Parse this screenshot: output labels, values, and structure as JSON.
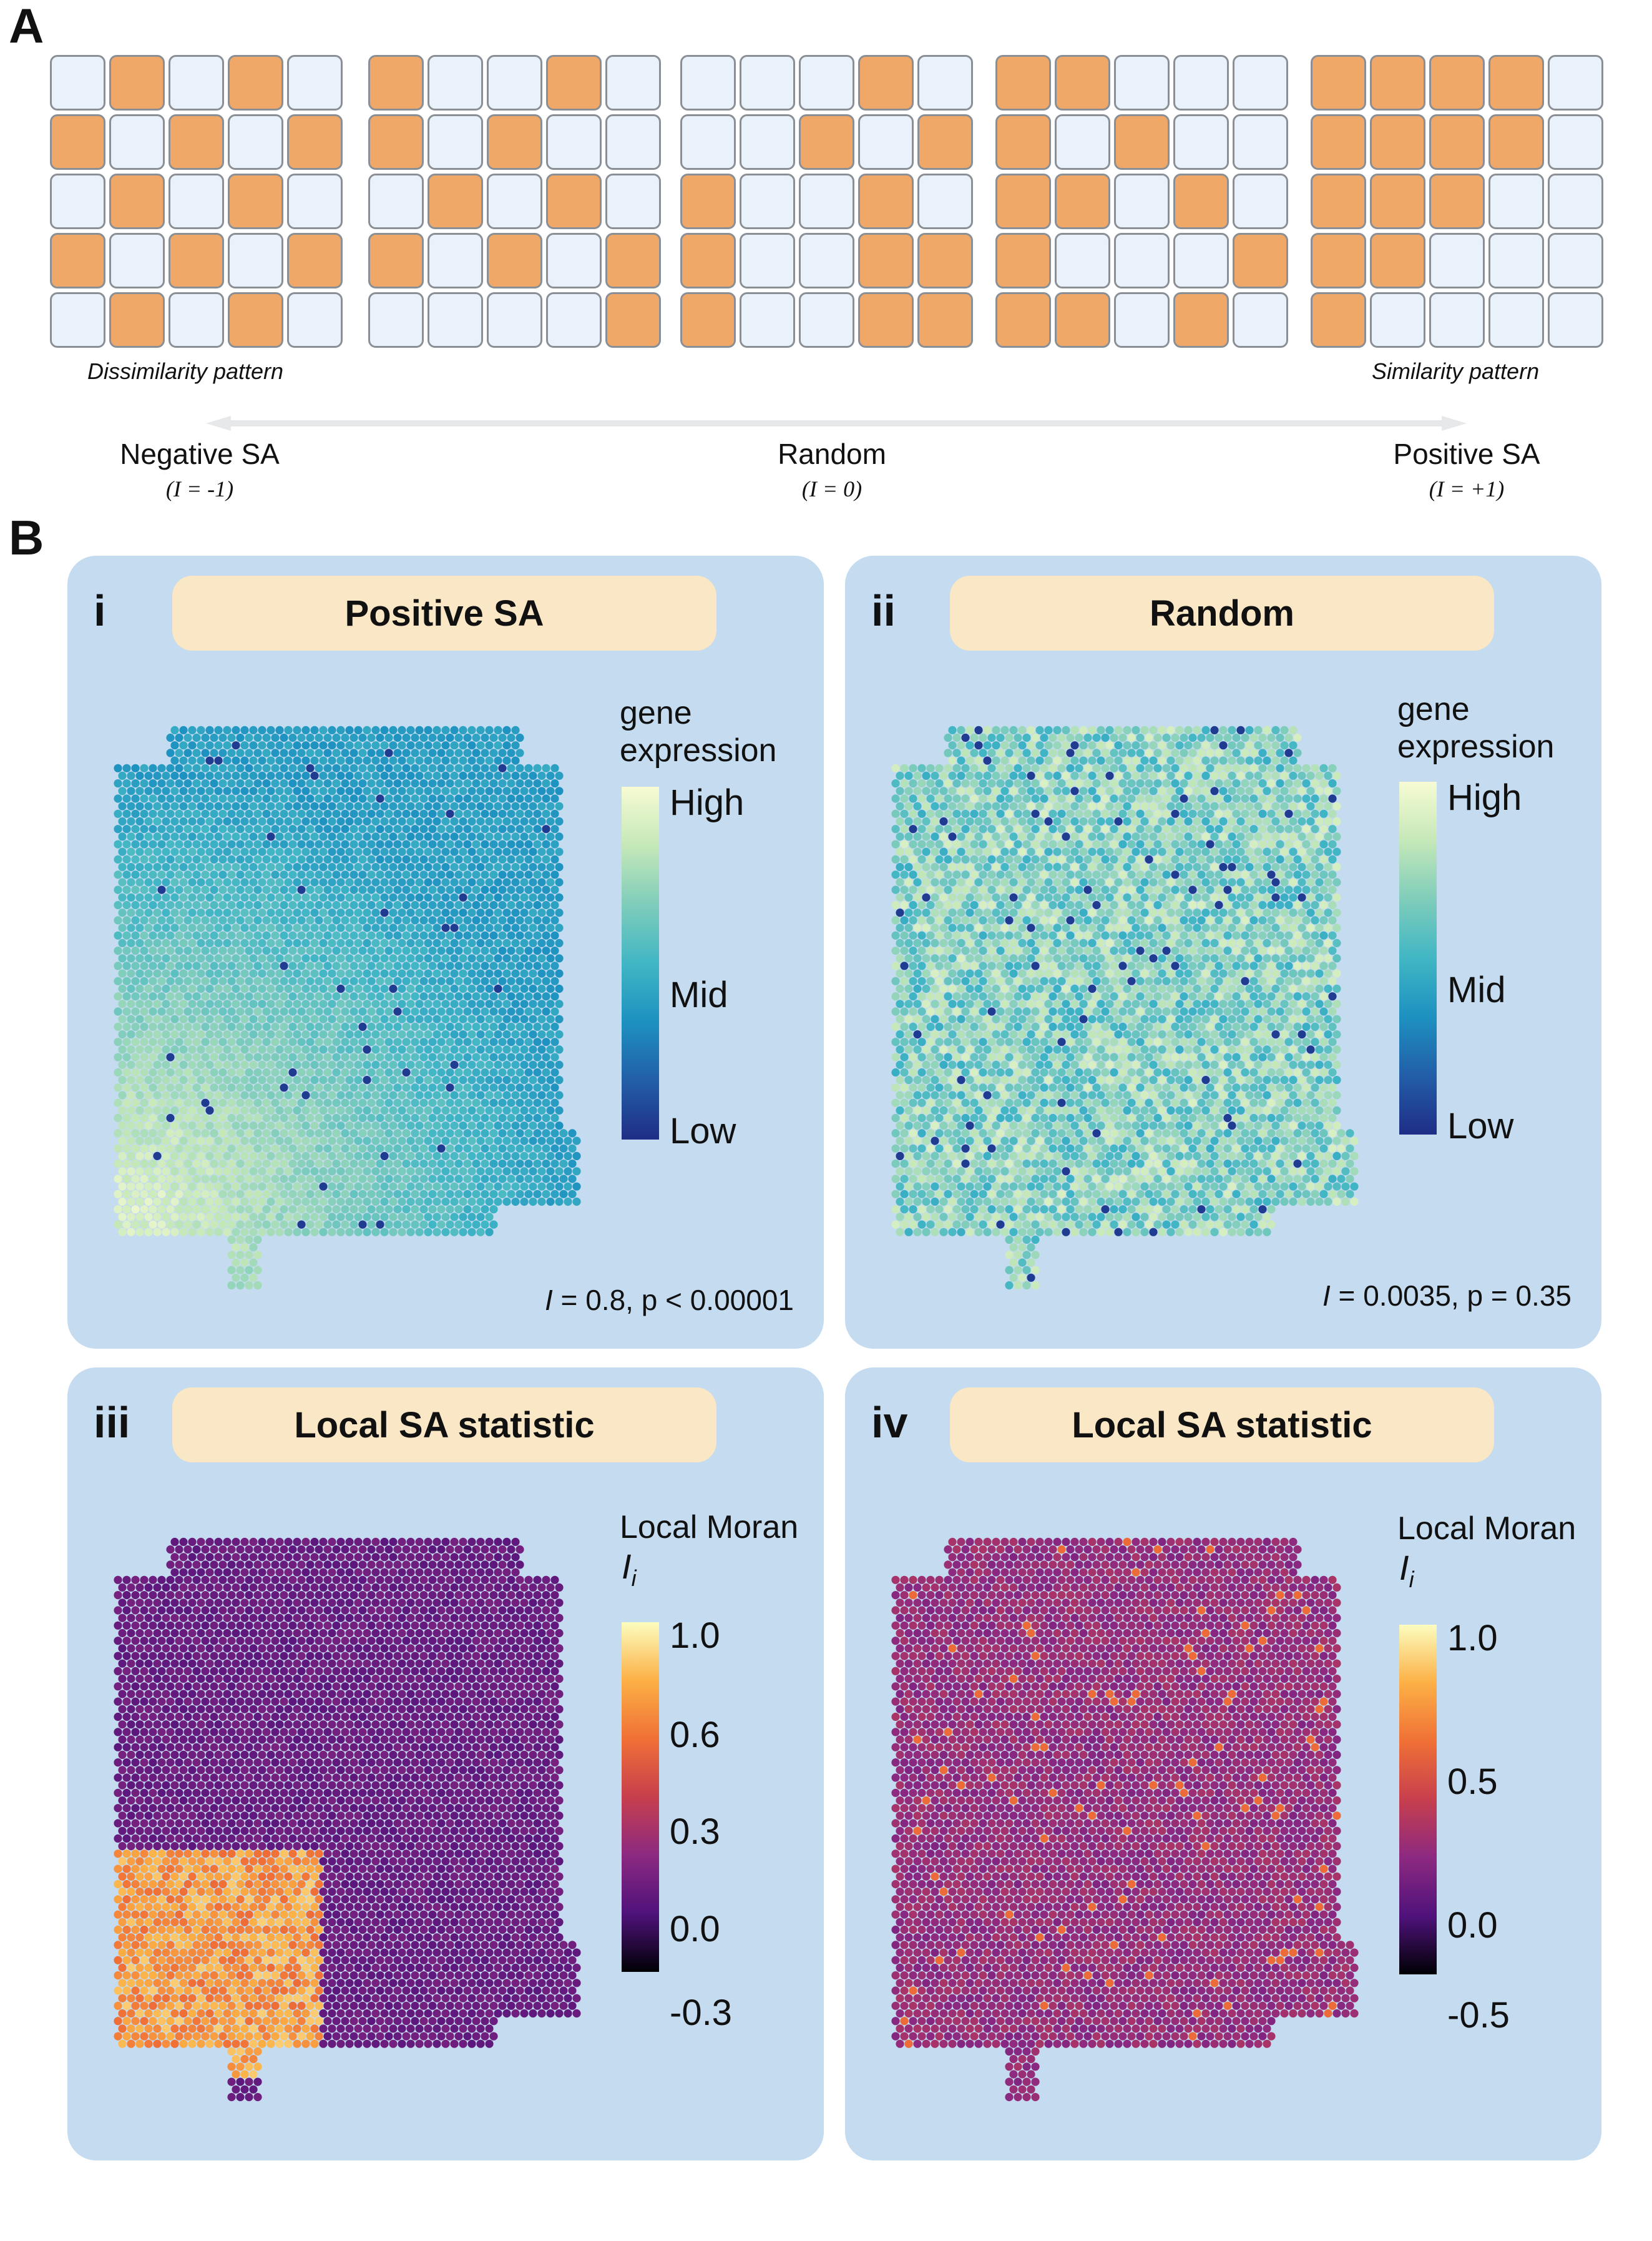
{
  "panel_a": {
    "letter": "A",
    "dissimilarity_label": "Dissimilarity pattern",
    "similarity_label": "Similarity pattern",
    "scale": [
      {
        "label": "Negative SA",
        "sub": "(I = -1)"
      },
      {
        "label": "Random",
        "sub": "(I = 0)"
      },
      {
        "label": "Positive SA",
        "sub": "(I = +1)"
      }
    ],
    "grids": [
      [
        "01010",
        "10101",
        "01010",
        "10101",
        "01010"
      ],
      [
        "10010",
        "10100",
        "01010",
        "10101",
        "00001"
      ],
      [
        "00010",
        "00101",
        "10010",
        "10011",
        "10011"
      ],
      [
        "11000",
        "10100",
        "11010",
        "10001",
        "11010"
      ],
      [
        "11110",
        "11110",
        "11100",
        "11000",
        "10000"
      ]
    ]
  },
  "panel_b": {
    "letter": "B",
    "cards": [
      {
        "roman": "i",
        "title": "Positive SA",
        "legend_title": "gene\nexpression",
        "ticks": [
          "High",
          "Mid",
          "Low"
        ],
        "stat": "I = 0.8, p < 0.00001"
      },
      {
        "roman": "ii",
        "title": "Random",
        "legend_title": "gene\nexpression",
        "ticks": [
          "High",
          "Mid",
          "Low"
        ],
        "stat": "I = 0.0035, p = 0.35"
      },
      {
        "roman": "iii",
        "title": "Local SA statistic",
        "legend_title": "Local Moran",
        "legend_symbol": "Ii",
        "ticks": [
          "1.0",
          "0.6",
          "0.3",
          "0.0",
          "-0.3"
        ]
      },
      {
        "roman": "iv",
        "title": "Local SA statistic",
        "legend_title": "Local Moran",
        "legend_symbol": "Ii",
        "ticks": [
          "1.0",
          "0.5",
          "0.0",
          "-0.5"
        ]
      }
    ]
  },
  "colors": {
    "orange_cell": "#f0a868",
    "light_cell": "#e9f1fa",
    "card_bg": "#c5dbf0",
    "title_box": "#f9e7c5",
    "gene_scale": [
      "#f7fbd4",
      "#c5e8b8",
      "#7fcdbb",
      "#41b6c4",
      "#1d91c0",
      "#225ea8",
      "#1f2d86"
    ],
    "moran_scale": [
      "#fcfdbf",
      "#fcb045",
      "#f07036",
      "#c73f4d",
      "#8c2981",
      "#4f127b",
      "#000004"
    ]
  }
}
